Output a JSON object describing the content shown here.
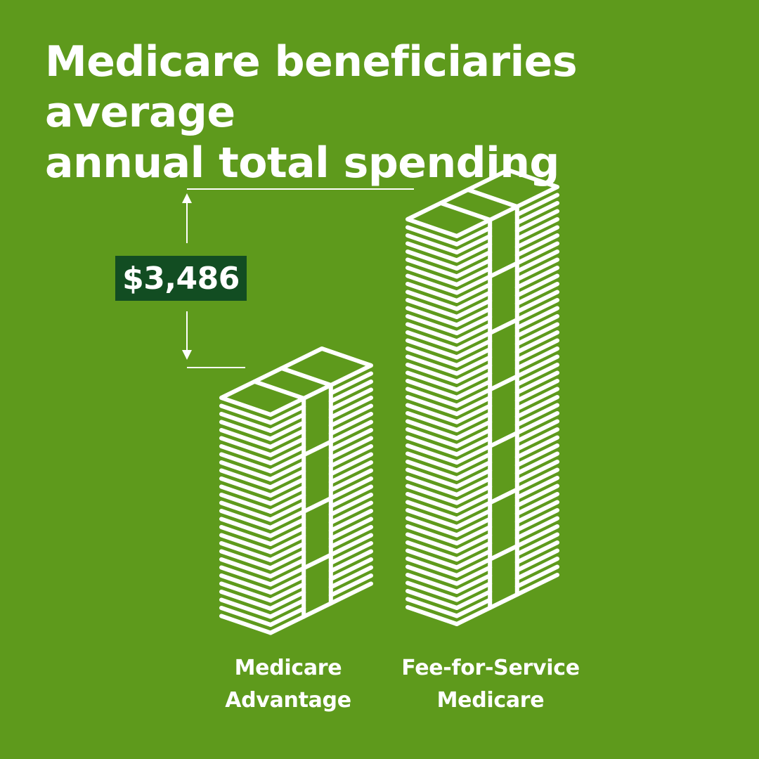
{
  "title": {
    "line1": "Medicare beneficiaries average",
    "line2": "annual total spending"
  },
  "difference_label": "$3,486",
  "bars": [
    {
      "line1": "Medicare",
      "line2": "Advantage"
    },
    {
      "line1": "Fee-for-Service",
      "line2": "Medicare"
    }
  ],
  "colors": {
    "background": "#5e9a1c",
    "badge": "#124d22",
    "foreground": "#ffffff"
  },
  "chart_data": {
    "type": "bar",
    "title": "Medicare beneficiaries average annual total spending",
    "categories": [
      "Medicare Advantage",
      "Fee-for-Service Medicare"
    ],
    "annotation": "$3,486",
    "annotation_meaning": "Fee-for-Service Medicare average annual total spending exceeds Medicare Advantage by $3,486",
    "values_relative_height": [
      1.0,
      1.8
    ],
    "xlabel": "",
    "ylabel": "",
    "grid": false,
    "legend": false,
    "style": "pictogram (isometric stacks of money)"
  }
}
